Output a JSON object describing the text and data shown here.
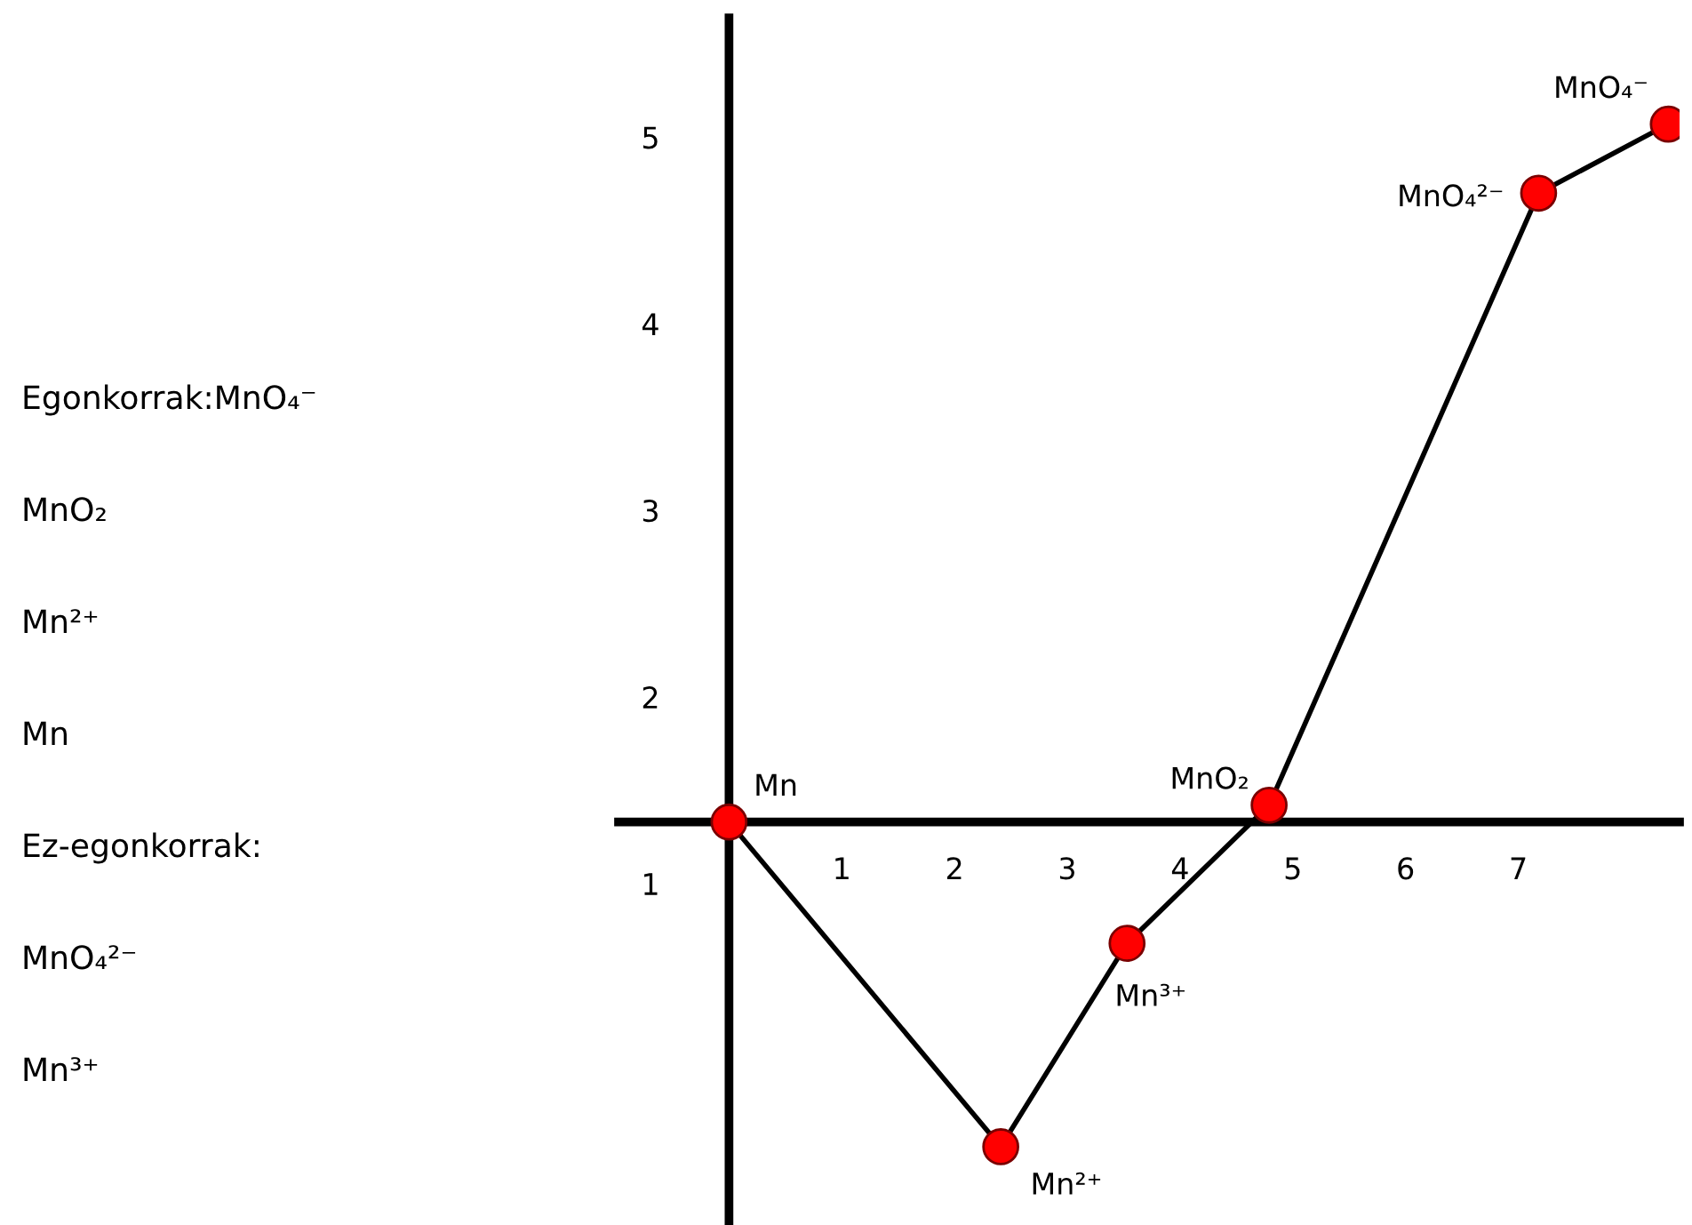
{
  "chart_data": {
    "type": "line",
    "x": [
      0,
      2.41,
      3.53,
      4.79,
      7.18,
      8.33
    ],
    "series": [
      {
        "color": "#ff0000",
        "values": [
          1.33,
          -0.41,
          0.68,
          1.42,
          4.7,
          5.07
        ]
      }
    ],
    "value_labels": [
      "Mn",
      "Mn²⁺",
      "Mn³⁺",
      "MnO₂",
      "MnO₄²⁻",
      "MnO₄⁻"
    ],
    "marker": "circle",
    "line_style": "solid",
    "grid": false,
    "xlim": [
      -0.98,
      8.43
    ],
    "ylim": [
      -0.82,
      5.64
    ],
    "xticks": [
      1,
      2,
      3,
      4,
      5,
      6,
      7
    ],
    "yticks": [
      1,
      2,
      3,
      4,
      5
    ],
    "annotations": [
      "Egonkorrak:MnO₄⁻",
      "MnO₂",
      "Mn²⁺",
      "Mn",
      "Ez-egonkorrak:",
      "MnO₄²⁻",
      "Mn³⁺"
    ]
  }
}
